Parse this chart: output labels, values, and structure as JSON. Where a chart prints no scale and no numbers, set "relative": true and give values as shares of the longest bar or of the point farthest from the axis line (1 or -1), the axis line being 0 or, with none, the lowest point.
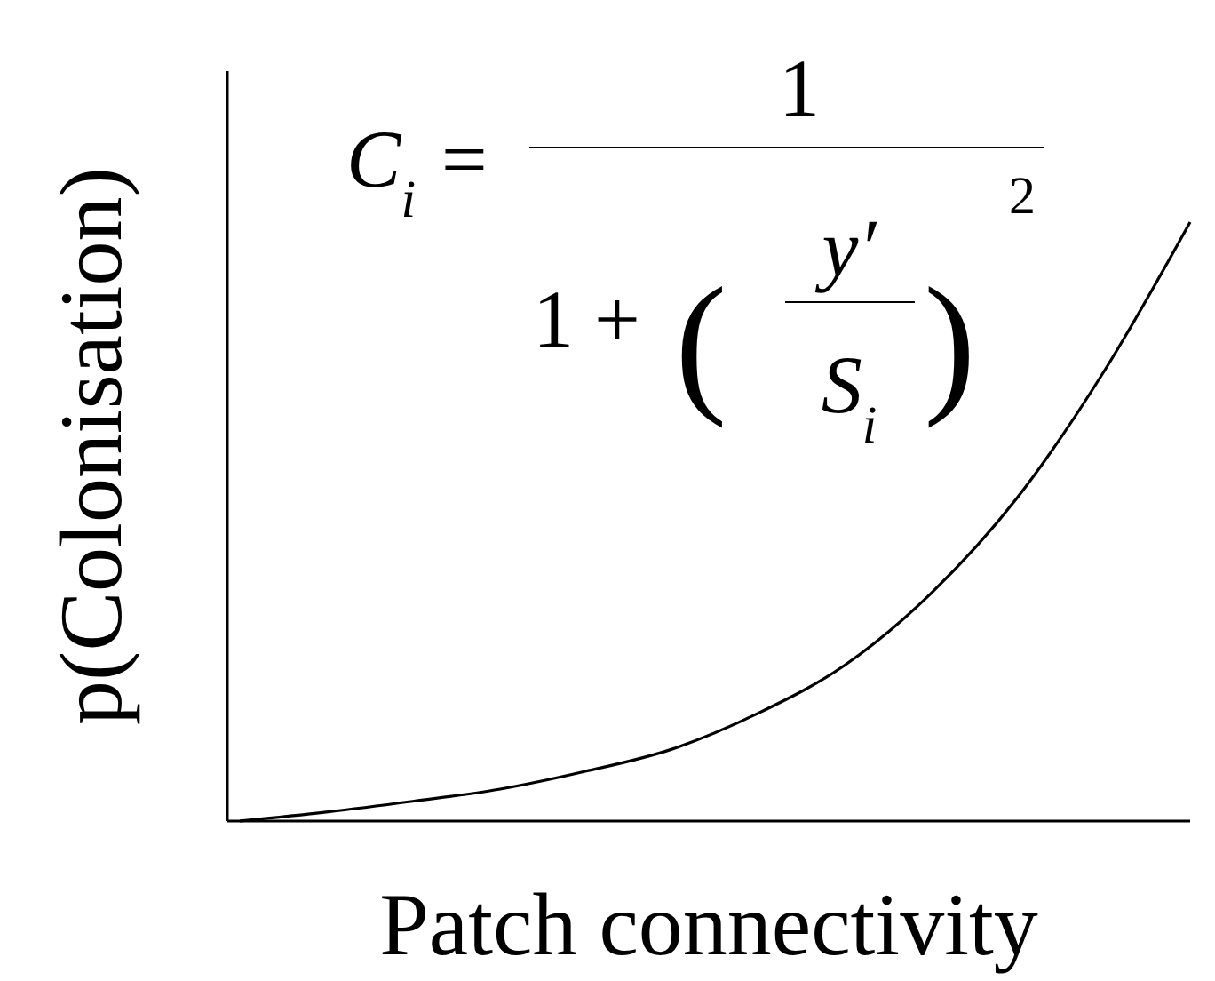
{
  "chart_data": {
    "type": "line",
    "relative": true,
    "xlabel": "Patch connectivity",
    "ylabel": "p(Colonisation)",
    "categories": [
      null,
      null,
      null,
      null,
      null,
      null,
      null,
      null,
      null,
      null,
      null,
      null
    ],
    "series": [
      {
        "color": "#000000",
        "values": [
          0,
          0.015,
          0.033,
          0.053,
          0.083,
          0.12,
          0.18,
          0.26,
          0.38,
          0.54,
          0.75,
          1
        ]
      }
    ],
    "annotations": [
      "C$_{i}$ =",
      "1",
      "1 +",
      "(",
      "y′",
      "S$_{i}$",
      ")",
      "2"
    ],
    "marker": "none",
    "line_style": "solid"
  }
}
